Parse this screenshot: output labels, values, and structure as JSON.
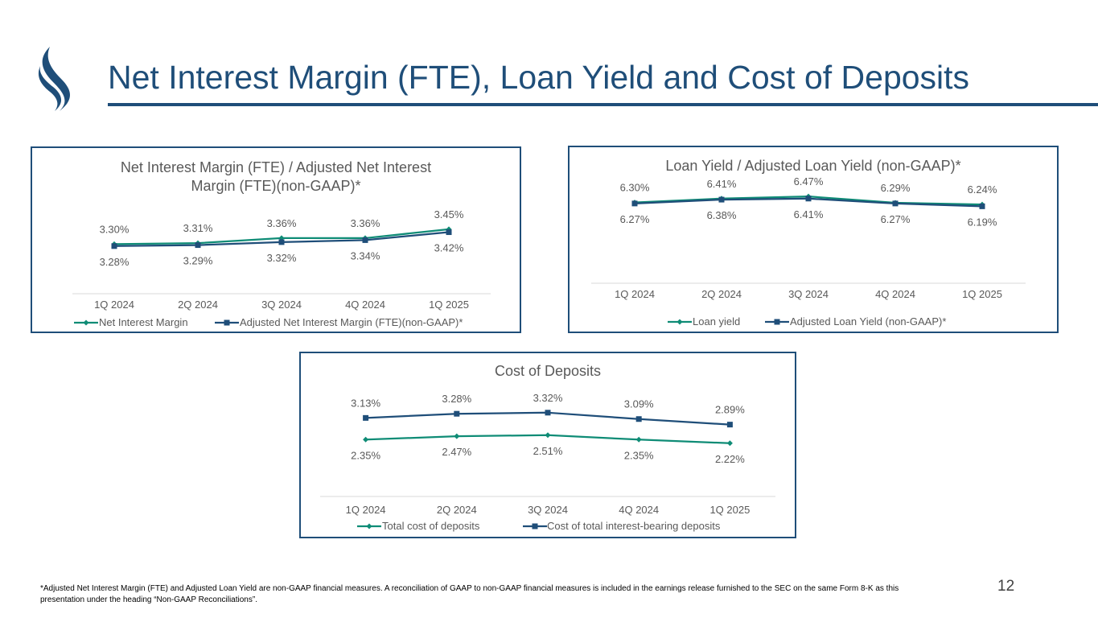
{
  "slide": {
    "title": "Net Interest Margin (FTE), Loan Yield and Cost of Deposits",
    "footnote": "*Adjusted Net Interest Margin (FTE) and Adjusted Loan Yield are non-GAAP financial measures. A reconciliation of GAAP to non-GAAP financial measures is included in the earnings release furnished to the SEC on the same Form 8-K as this presentation under the heading “Non-GAAP Reconciliations”.",
    "page_number": "12"
  },
  "colors": {
    "brand_navy": "#1f4e79",
    "series_green": "#0f8c76",
    "series_navy": "#1f4e79",
    "gridline": "#d9d9d9",
    "text_gray": "#595959"
  },
  "chart_data": [
    {
      "type": "line",
      "title_lines": [
        "Net Interest Margin (FTE) / Adjusted Net Interest",
        "Margin (FTE)(non-GAAP)*"
      ],
      "categories": [
        "1Q 2024",
        "2Q 2024",
        "3Q 2024",
        "4Q 2024",
        "1Q 2025"
      ],
      "series": [
        {
          "name": "Net Interest Margin",
          "marker": "diamond",
          "values": [
            3.3,
            3.31,
            3.36,
            3.36,
            3.45
          ],
          "labels": [
            "3.30%",
            "3.31%",
            "3.36%",
            "3.36%",
            "3.45%"
          ],
          "label_position": "above"
        },
        {
          "name": "Adjusted Net Interest Margin (FTE)(non-GAAP)*",
          "marker": "square",
          "values": [
            3.28,
            3.29,
            3.32,
            3.34,
            3.42
          ],
          "labels": [
            "3.28%",
            "3.29%",
            "3.32%",
            "3.34%",
            "3.42%"
          ],
          "label_position": "below"
        }
      ],
      "ylim": [
        2.8,
        3.7
      ],
      "legend": "bottom"
    },
    {
      "type": "line",
      "title_lines": [
        "Loan Yield / Adjusted Loan Yield (non-GAAP)*"
      ],
      "categories": [
        "1Q 2024",
        "2Q 2024",
        "3Q 2024",
        "4Q 2024",
        "1Q 2025"
      ],
      "series": [
        {
          "name": "Loan yield",
          "marker": "diamond",
          "values": [
            6.3,
            6.41,
            6.47,
            6.29,
            6.24
          ],
          "labels": [
            "6.30%",
            "6.41%",
            "6.47%",
            "6.29%",
            "6.24%"
          ],
          "label_position": "above"
        },
        {
          "name": "Adjusted Loan Yield (non-GAAP)*",
          "marker": "square",
          "values": [
            6.27,
            6.38,
            6.41,
            6.27,
            6.19
          ],
          "labels": [
            "6.27%",
            "6.38%",
            "6.41%",
            "6.27%",
            "6.19%"
          ],
          "label_position": "below"
        }
      ],
      "ylim": [
        4.0,
        7.0
      ],
      "legend": "bottom"
    },
    {
      "type": "line",
      "title_lines": [
        "Cost of Deposits"
      ],
      "categories": [
        "1Q 2024",
        "2Q 2024",
        "3Q 2024",
        "4Q 2024",
        "1Q 2025"
      ],
      "series": [
        {
          "name": "Total cost of deposits",
          "marker": "diamond",
          "values": [
            2.35,
            2.47,
            2.51,
            2.35,
            2.22
          ],
          "labels": [
            "2.35%",
            "2.47%",
            "2.51%",
            "2.35%",
            "2.22%"
          ],
          "label_position": "below"
        },
        {
          "name": "Cost of total interest-bearing deposits",
          "marker": "square",
          "values": [
            3.13,
            3.28,
            3.32,
            3.09,
            2.89
          ],
          "labels": [
            "3.13%",
            "3.28%",
            "3.32%",
            "3.09%",
            "2.89%"
          ],
          "label_position": "above"
        }
      ],
      "ylim": [
        0.3,
        4.3
      ],
      "legend": "bottom"
    }
  ]
}
